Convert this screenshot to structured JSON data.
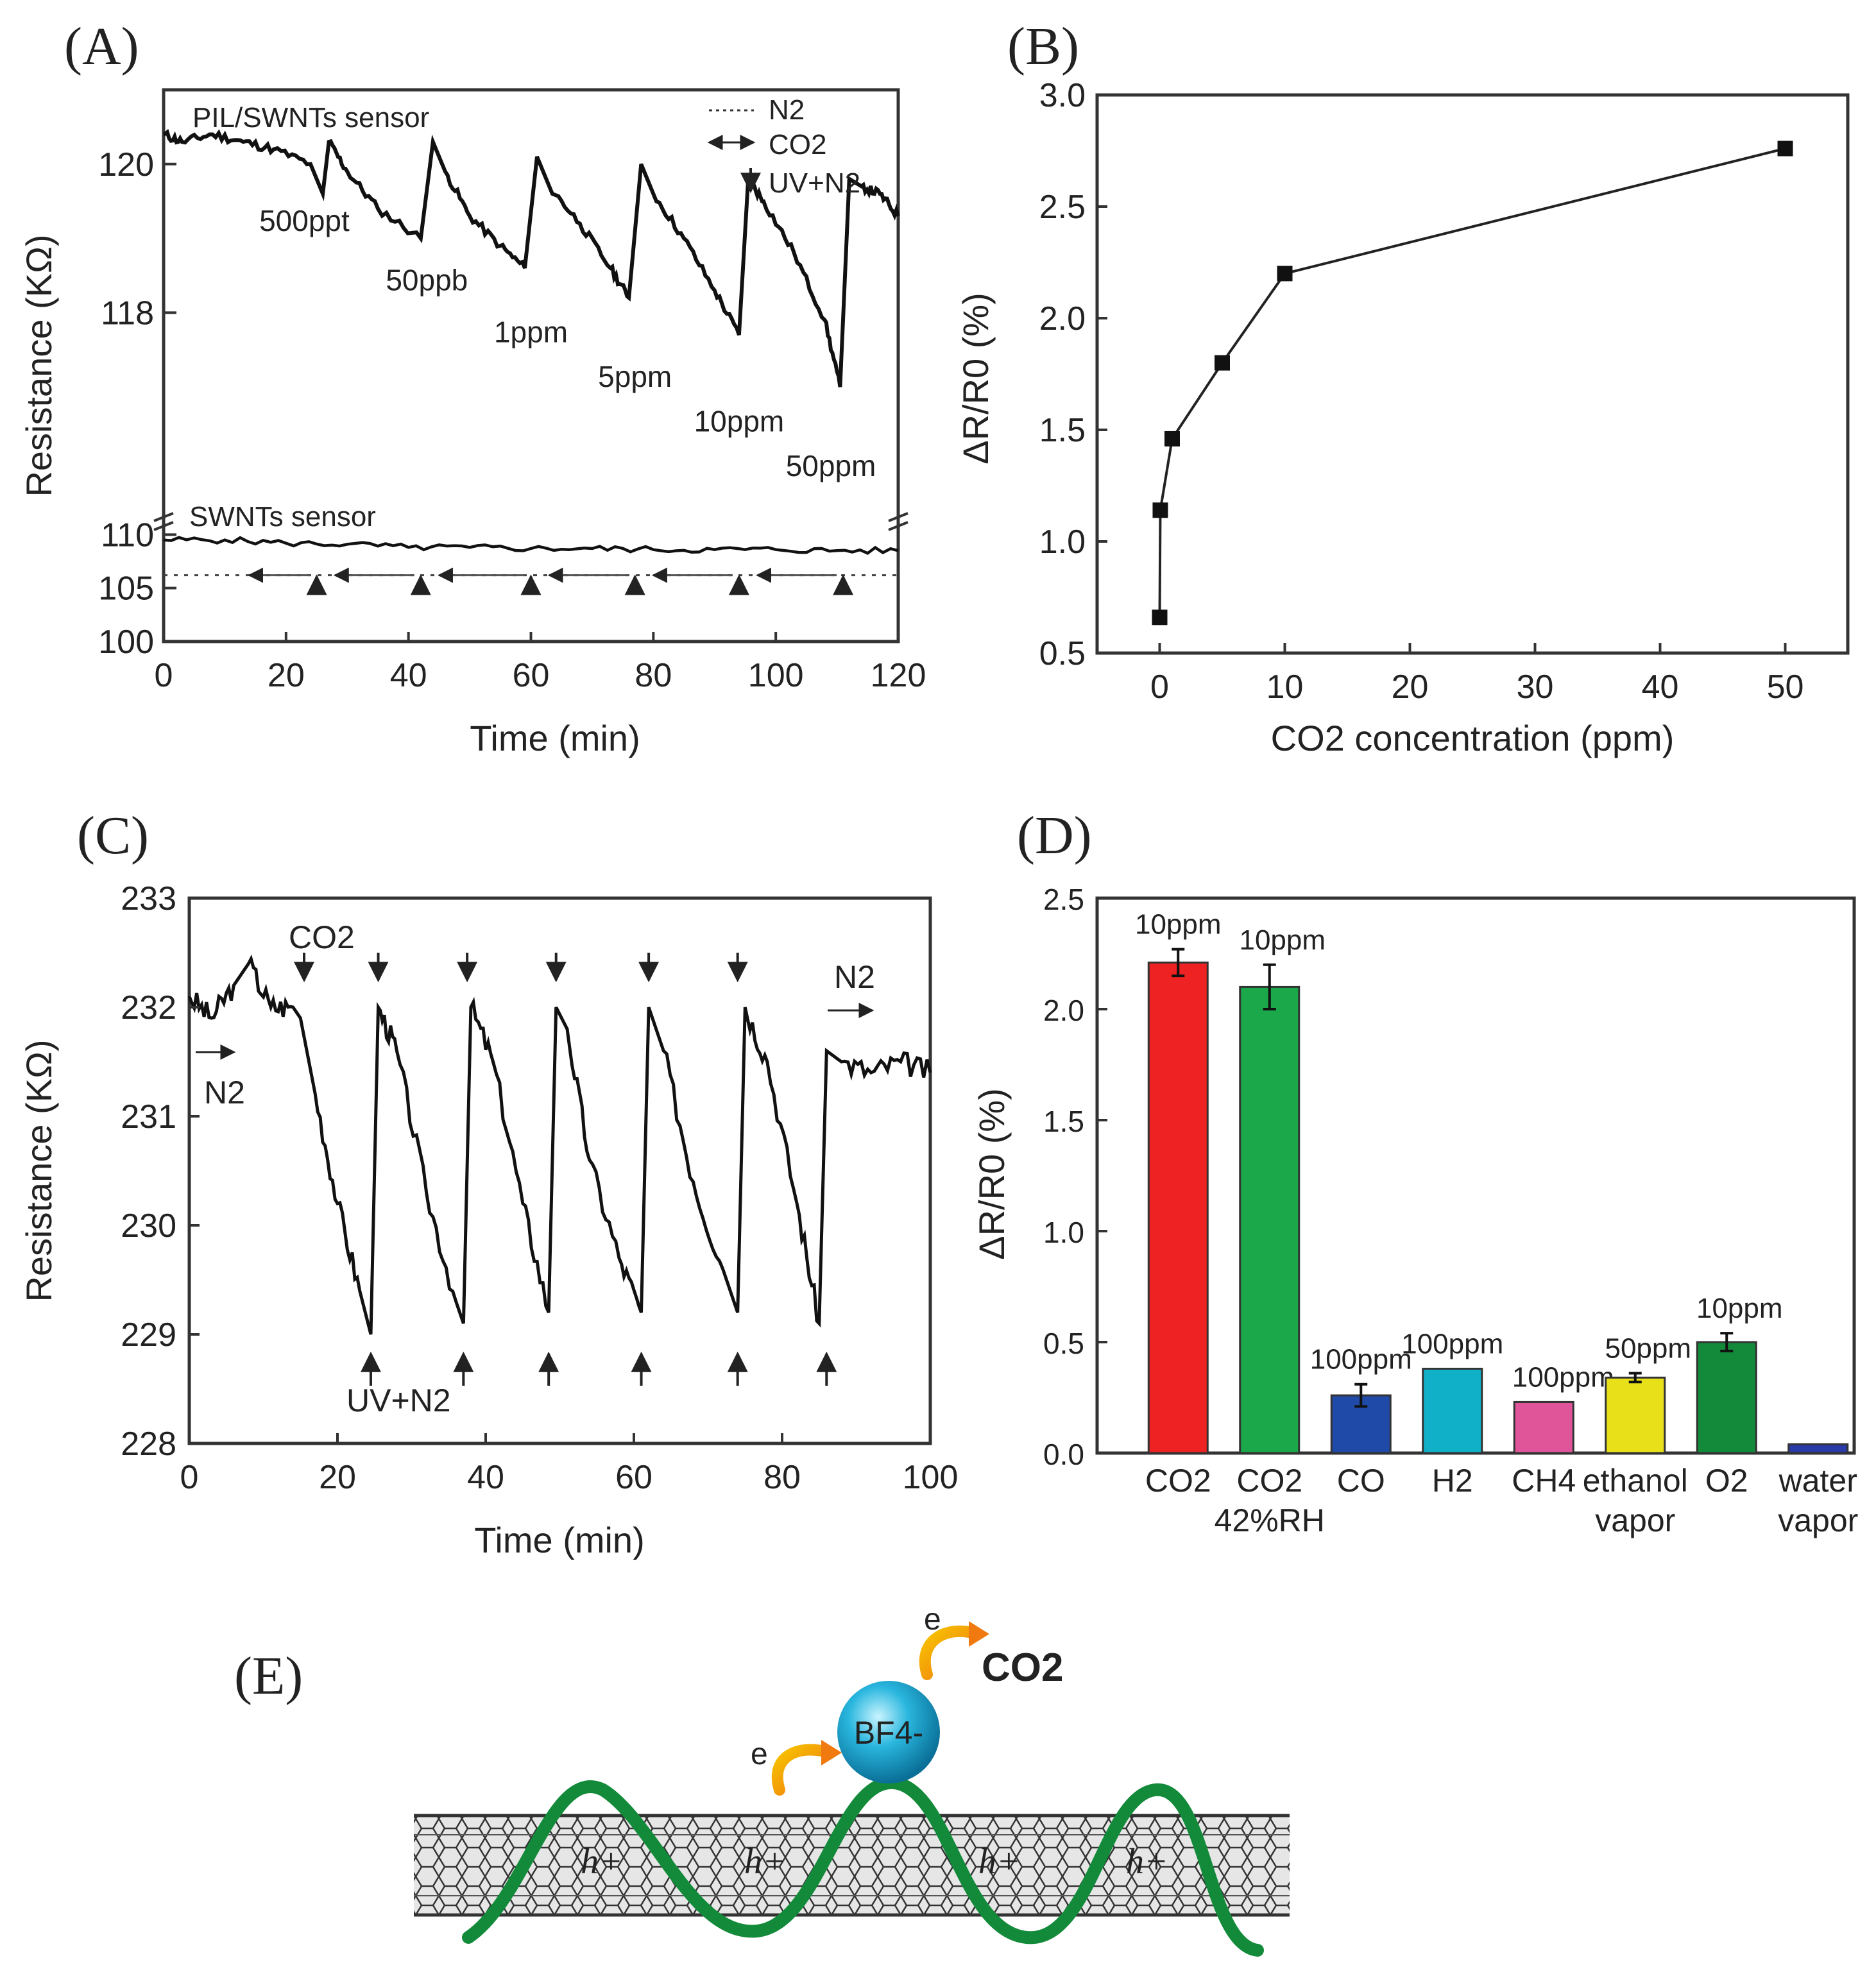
{
  "chart_data": [
    {
      "id": "A",
      "panel_label": "(A)",
      "type": "line",
      "xlabel": "Time (min)",
      "ylabel": "Resistance (KΩ)",
      "xlim": [
        0,
        120
      ],
      "xticks": [
        "0",
        "20",
        "40",
        "60",
        "80",
        "100",
        "120"
      ],
      "yticks_top": [
        "118",
        "120"
      ],
      "yticks_bottom": [
        "100",
        "105",
        "110"
      ],
      "ylim_top": [
        115.3,
        121.0
      ],
      "ylim_bottom": [
        100,
        112
      ],
      "legend": {
        "n2": "N2",
        "co2": "CO2",
        "uv": "UV+N2"
      },
      "series": [
        {
          "name": "PIL/SWNTs sensor",
          "label": "PIL/SWNTs sensor",
          "x": [
            0,
            3,
            8,
            13,
            18,
            24,
            26,
            27,
            30,
            35,
            42,
            44,
            46,
            50,
            55,
            59,
            61,
            63,
            68,
            73,
            76,
            78,
            80,
            85,
            90,
            94,
            95.5,
            98,
            103,
            108,
            110.5,
            112,
            114,
            117,
            120
          ],
          "y": [
            120.4,
            120.3,
            120.4,
            120.3,
            120.2,
            120.0,
            119.6,
            120.3,
            119.9,
            119.4,
            119.0,
            120.3,
            119.9,
            119.3,
            118.9,
            118.6,
            120.1,
            119.7,
            119.2,
            118.6,
            118.2,
            120.0,
            119.6,
            119.0,
            118.3,
            117.7,
            119.8,
            119.5,
            118.8,
            117.9,
            117.0,
            119.8,
            119.7,
            119.6,
            119.3
          ]
        },
        {
          "name": "SWNTs sensor",
          "label": "SWNTs sensor",
          "x": [
            0,
            10,
            20,
            30,
            40,
            50,
            60,
            70,
            80,
            90,
            100,
            110,
            120
          ],
          "y": [
            109.5,
            109.5,
            109.2,
            109.1,
            108.8,
            108.8,
            108.7,
            108.7,
            108.6,
            108.6,
            108.6,
            108.5,
            108.5
          ]
        }
      ],
      "baseline_y": 106.2,
      "co2_arrows_x": [
        25,
        42,
        60,
        77,
        94,
        111
      ],
      "annotations": [
        {
          "text": "500ppt",
          "x": 23,
          "y": 119.1
        },
        {
          "text": "50ppb",
          "x": 43,
          "y": 118.3
        },
        {
          "text": "1ppm",
          "x": 60,
          "y": 117.6
        },
        {
          "text": "5ppm",
          "x": 77,
          "y": 117.0
        },
        {
          "text": "10ppm",
          "x": 94,
          "y": 116.4
        },
        {
          "text": "50ppm",
          "x": 109,
          "y": 115.8
        }
      ]
    },
    {
      "id": "B",
      "panel_label": "(B)",
      "type": "line",
      "xlabel": "CO2 concentration (ppm)",
      "ylabel": "ΔR/R0 (%)",
      "xlim": [
        -5,
        55
      ],
      "ylim": [
        0.5,
        3.0
      ],
      "xticks": [
        "0",
        "10",
        "20",
        "30",
        "40",
        "50"
      ],
      "yticks": [
        "0.5",
        "1.0",
        "1.5",
        "2.0",
        "2.5",
        "3.0"
      ],
      "x": [
        0.0005,
        0.05,
        1,
        5,
        10,
        50
      ],
      "y": [
        0.66,
        1.14,
        1.46,
        1.8,
        2.2,
        2.76
      ]
    },
    {
      "id": "C",
      "panel_label": "(C)",
      "type": "line",
      "xlabel": "Time (min)",
      "ylabel": "Resistance (KΩ)",
      "xlim": [
        0,
        100
      ],
      "ylim": [
        228,
        233
      ],
      "xticks": [
        "0",
        "20",
        "40",
        "60",
        "80",
        "100"
      ],
      "yticks": [
        "228",
        "229",
        "230",
        "231",
        "232",
        "233"
      ],
      "series": [
        {
          "name": "resistance",
          "x": [
            0,
            3,
            6,
            8,
            11,
            14,
            15,
            17,
            20,
            23,
            24.5,
            25.5,
            28,
            32,
            36,
            37,
            38,
            41,
            45,
            48.5,
            49.5,
            51,
            54,
            58,
            61,
            62,
            64,
            68,
            72,
            74,
            75,
            78,
            82,
            85,
            86,
            88,
            92,
            96,
            100
          ],
          "y": [
            232.1,
            231.9,
            232.2,
            232.4,
            232.0,
            232.0,
            231.9,
            231.2,
            230.2,
            229.4,
            229.0,
            232.0,
            231.6,
            230.3,
            229.3,
            229.1,
            232.0,
            231.5,
            230.2,
            229.2,
            232.0,
            231.8,
            230.6,
            229.7,
            229.2,
            232.0,
            231.6,
            230.4,
            229.6,
            229.2,
            232.0,
            231.5,
            230.2,
            229.1,
            231.6,
            231.5,
            231.4,
            231.5,
            231.4
          ]
        }
      ],
      "co2_arrows_x": [
        15.5,
        25.5,
        37.5,
        49.5,
        62,
        74
      ],
      "uv_arrows_x": [
        24.5,
        37,
        48.5,
        61,
        74,
        86
      ],
      "labels": {
        "co2": "CO2",
        "uv": "UV+N2",
        "n2_start": "N2",
        "n2_end": "N2"
      }
    },
    {
      "id": "D",
      "panel_label": "(D)",
      "type": "bar",
      "ylabel": "ΔR/R0 (%)",
      "ylim": [
        0,
        2.5
      ],
      "yticks": [
        "0.0",
        "0.5",
        "1.0",
        "1.5",
        "2.0",
        "2.5"
      ],
      "categories": [
        "CO2",
        "CO2 42%RH",
        "CO",
        "H2",
        "CH4",
        "ethanol vapor",
        "O2",
        "water vapor"
      ],
      "values": [
        2.21,
        2.1,
        0.26,
        0.38,
        0.23,
        0.34,
        0.5,
        0.04
      ],
      "errors": [
        0.06,
        0.1,
        0.05,
        0.0,
        0.0,
        0.02,
        0.04,
        0.0
      ],
      "colors": [
        "#ee2222",
        "#1aa84a",
        "#1f4aa8",
        "#10b0c8",
        "#e0559a",
        "#e8e018",
        "#138a3a",
        "#2a3aa8"
      ],
      "concentrations": [
        "10ppm",
        "10ppm",
        "100ppm",
        "100ppm",
        "100ppm",
        "50ppm",
        "10ppm",
        ""
      ],
      "tick_labels": [
        {
          "line1": "CO2",
          "line2": ""
        },
        {
          "line1": "CO2",
          "line2": "42%RH"
        },
        {
          "line1": "CO",
          "line2": ""
        },
        {
          "line1": "H2",
          "line2": ""
        },
        {
          "line1": "CH4",
          "line2": ""
        },
        {
          "line1": "ethanol",
          "line2": "vapor"
        },
        {
          "line1": "O2",
          "line2": ""
        },
        {
          "line1": "water",
          "line2": "vapor"
        }
      ]
    }
  ],
  "schematic": {
    "panel_label": "(E)",
    "ion_label": "BF4-",
    "co2_label": "CO2",
    "electron_label": "e",
    "hole_label": "h+"
  }
}
